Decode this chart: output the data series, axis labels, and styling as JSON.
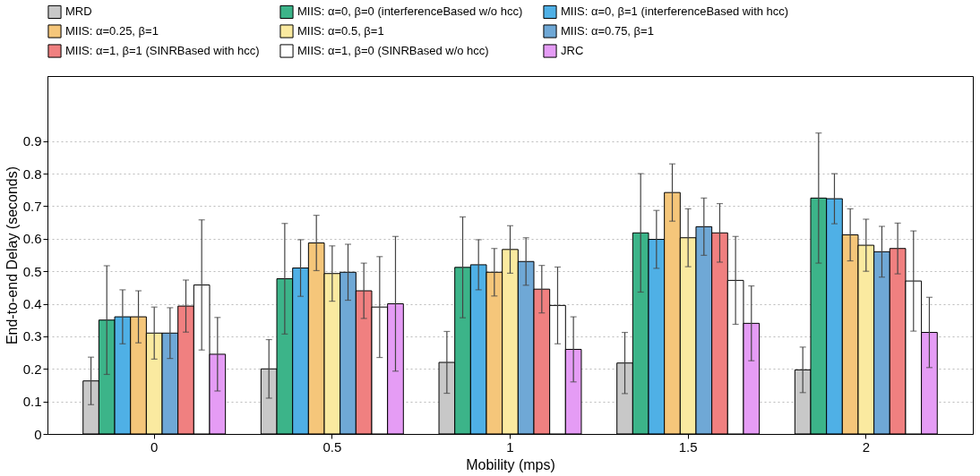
{
  "chart_data": {
    "type": "bar",
    "xlabel": "Mobility (mps)",
    "ylabel": "End-to-end Delay (seconds)",
    "categories": [
      "0",
      "0.5",
      "1",
      "1.5",
      "2"
    ],
    "ylim": [
      0,
      1.1
    ],
    "yticks": [
      0,
      0.1,
      0.2,
      0.3,
      0.4,
      0.5,
      0.6,
      0.7,
      0.8,
      0.9
    ],
    "grid": "y",
    "legend": "top",
    "series": [
      {
        "name": "MRD",
        "color": "#c8c8c8",
        "values": [
          0.163,
          0.2,
          0.22,
          0.218,
          0.197
        ],
        "errors": [
          0.073,
          0.09,
          0.095,
          0.094,
          0.07
        ]
      },
      {
        "name": "MIIS: α=0, β=0 (interferenceBased w/o hcc)",
        "color": "#3cb489",
        "values": [
          0.35,
          0.477,
          0.512,
          0.618,
          0.725
        ],
        "errors": [
          0.167,
          0.17,
          0.155,
          0.182,
          0.2
        ]
      },
      {
        "name": "MIIS: α=0, β=1 (interferenceBased with hcc)",
        "color": "#4fb0e6",
        "values": [
          0.36,
          0.51,
          0.52,
          0.598,
          0.723
        ],
        "errors": [
          0.083,
          0.087,
          0.077,
          0.089,
          0.077
        ]
      },
      {
        "name": "MIIS: α=0.25, β=1",
        "color": "#f5c67a",
        "values": [
          0.36,
          0.587,
          0.497,
          0.742,
          0.612
        ],
        "errors": [
          0.08,
          0.085,
          0.073,
          0.088,
          0.08
        ]
      },
      {
        "name": "MIIS: α=0.5, β=1",
        "color": "#faeaa0",
        "values": [
          0.31,
          0.493,
          0.567,
          0.603,
          0.58
        ],
        "errors": [
          0.08,
          0.085,
          0.073,
          0.089,
          0.08
        ]
      },
      {
        "name": "MIIS: α=0.75, β=1",
        "color": "#6fa8d6",
        "values": [
          0.31,
          0.497,
          0.53,
          0.637,
          0.56
        ],
        "errors": [
          0.078,
          0.086,
          0.073,
          0.088,
          0.078
        ]
      },
      {
        "name": "MIIS: α=1, β=1 (SINRBased with hcc)",
        "color": "#f08080",
        "values": [
          0.393,
          0.44,
          0.445,
          0.618,
          0.57
        ],
        "errors": [
          0.08,
          0.085,
          0.073,
          0.09,
          0.078
        ]
      },
      {
        "name": "MIIS: α=1, β=0 (SINRBased w/o hcc)",
        "color": "#ffffff",
        "values": [
          0.458,
          0.39,
          0.395,
          0.472,
          0.47
        ],
        "errors": [
          0.2,
          0.155,
          0.118,
          0.135,
          0.154
        ]
      },
      {
        "name": "JRC",
        "color": "#e59cf5",
        "values": [
          0.245,
          0.4,
          0.26,
          0.34,
          0.312
        ],
        "errors": [
          0.113,
          0.207,
          0.1,
          0.115,
          0.108
        ]
      }
    ]
  }
}
